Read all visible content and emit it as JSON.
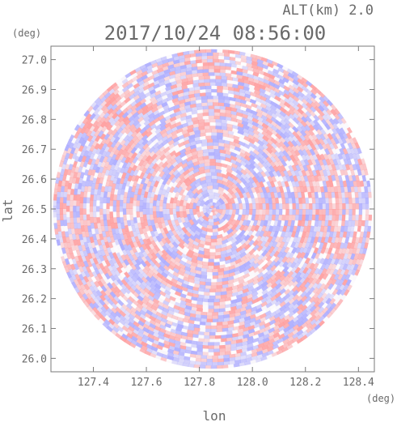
{
  "header": {
    "altitude_label": "ALT(km) 2.0",
    "timestamp": "2017/10/24 08:56:00"
  },
  "chart_data": {
    "type": "heatmap",
    "title": "2017/10/24 08:56:00",
    "subtitle": "ALT(km) 2.0",
    "xlabel": "lon",
    "ylabel": "lat",
    "x_unit": "(deg)",
    "y_unit": "(deg)",
    "xlim": [
      127.24,
      128.46
    ],
    "ylim": [
      25.955,
      27.045
    ],
    "x_ticks": [
      127.4,
      127.6,
      127.8,
      128.0,
      128.2,
      128.4
    ],
    "x_tick_labels": [
      "127.4",
      "127.6",
      "127.8",
      "128.0",
      "128.2",
      "128.4"
    ],
    "y_ticks": [
      26.0,
      26.1,
      26.2,
      26.3,
      26.4,
      26.5,
      26.6,
      26.7,
      26.8,
      26.9,
      27.0
    ],
    "y_tick_labels": [
      "26.0",
      "26.1",
      "26.2",
      "26.3",
      "26.4",
      "26.5",
      "26.6",
      "26.7",
      "26.8",
      "26.9",
      "27.0"
    ],
    "center": {
      "lon": 127.85,
      "lat": 26.5
    },
    "radius_deg_lat": 0.535,
    "grid": false,
    "colors": {
      "positive": "#ff9a9a",
      "negative": "#a8a8ff",
      "neutral": "#ffffff",
      "axis": "#7a7a7a"
    }
  }
}
